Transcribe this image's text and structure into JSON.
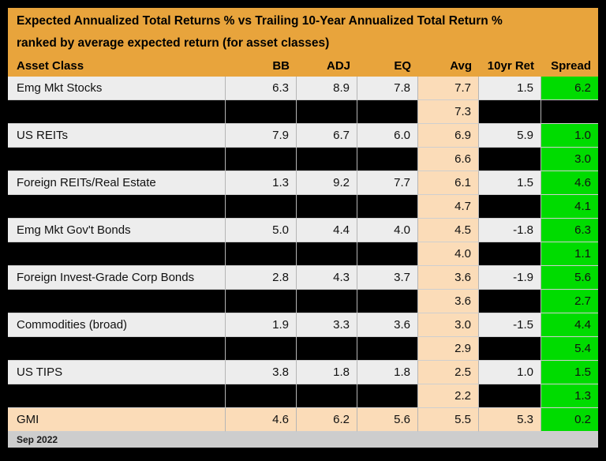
{
  "title": {
    "line1": "Expected Annualized Total Returns % vs Trailing 10-Year Annualized Total Return %",
    "line2": "ranked by average expected return (for asset classes)"
  },
  "columns": [
    "Asset Class",
    "BB",
    "ADJ",
    "EQ",
    "Avg",
    "10yr Ret",
    "Spread"
  ],
  "footer": {
    "date": "Sep 2022"
  },
  "colors": {
    "header_gold": "#E8A43C",
    "row_gray": "#EDEDED",
    "avg_peach": "#FBDCB8",
    "spread_green": "#00DC00",
    "redacted_black": "#000000",
    "footer_gray": "#CDCDCD"
  },
  "chart_data": {
    "type": "table",
    "title": "Expected Annualized Total Returns % vs Trailing 10-Year Annualized Total Return %",
    "subtitle": "ranked by average expected return (for asset classes)",
    "columns": [
      "Asset Class",
      "BB",
      "ADJ",
      "EQ",
      "Avg",
      "10yr Ret",
      "Spread"
    ],
    "rows": [
      {
        "style": "visible",
        "asset_class": "Emg Mkt Stocks",
        "bb": "6.3",
        "adj": "8.9",
        "eq": "7.8",
        "avg": "7.7",
        "ret10": "1.5",
        "spread": "6.2"
      },
      {
        "style": "redacted",
        "asset_class": "",
        "bb": "",
        "adj": "",
        "eq": "",
        "avg": "7.3",
        "ret10": "",
        "spread": ""
      },
      {
        "style": "visible",
        "asset_class": "US REITs",
        "bb": "7.9",
        "adj": "6.7",
        "eq": "6.0",
        "avg": "6.9",
        "ret10": "5.9",
        "spread": "1.0"
      },
      {
        "style": "redacted",
        "asset_class": "",
        "bb": "",
        "adj": "",
        "eq": "",
        "avg": "6.6",
        "ret10": "",
        "spread": "3.0"
      },
      {
        "style": "visible",
        "asset_class": "Foreign REITs/Real Estate",
        "bb": "1.3",
        "adj": "9.2",
        "eq": "7.7",
        "avg": "6.1",
        "ret10": "1.5",
        "spread": "4.6"
      },
      {
        "style": "redacted",
        "asset_class": "",
        "bb": "",
        "adj": "",
        "eq": "",
        "avg": "4.7",
        "ret10": "",
        "spread": "4.1"
      },
      {
        "style": "visible",
        "asset_class": "Emg Mkt Gov't Bonds",
        "bb": "5.0",
        "adj": "4.4",
        "eq": "4.0",
        "avg": "4.5",
        "ret10": "-1.8",
        "spread": "6.3"
      },
      {
        "style": "redacted",
        "asset_class": "",
        "bb": "",
        "adj": "",
        "eq": "",
        "avg": "4.0",
        "ret10": "",
        "spread": "1.1"
      },
      {
        "style": "visible",
        "asset_class": "Foreign Invest-Grade Corp Bonds",
        "bb": "2.8",
        "adj": "4.3",
        "eq": "3.7",
        "avg": "3.6",
        "ret10": "-1.9",
        "spread": "5.6"
      },
      {
        "style": "redacted",
        "asset_class": "",
        "bb": "",
        "adj": "",
        "eq": "",
        "avg": "3.6",
        "ret10": "",
        "spread": "2.7"
      },
      {
        "style": "visible",
        "asset_class": "Commodities (broad)",
        "bb": "1.9",
        "adj": "3.3",
        "eq": "3.6",
        "avg": "3.0",
        "ret10": "-1.5",
        "spread": "4.4"
      },
      {
        "style": "redacted",
        "asset_class": "",
        "bb": "",
        "adj": "",
        "eq": "",
        "avg": "2.9",
        "ret10": "",
        "spread": "5.4"
      },
      {
        "style": "visible",
        "asset_class": "US TIPS",
        "bb": "3.8",
        "adj": "1.8",
        "eq": "1.8",
        "avg": "2.5",
        "ret10": "1.0",
        "spread": "1.5"
      },
      {
        "style": "redacted",
        "asset_class": "",
        "bb": "",
        "adj": "",
        "eq": "",
        "avg": "2.2",
        "ret10": "",
        "spread": "1.3"
      },
      {
        "style": "summary",
        "asset_class": "GMI",
        "bb": "4.6",
        "adj": "6.2",
        "eq": "5.6",
        "avg": "5.5",
        "ret10": "5.3",
        "spread": "0.2"
      }
    ]
  }
}
